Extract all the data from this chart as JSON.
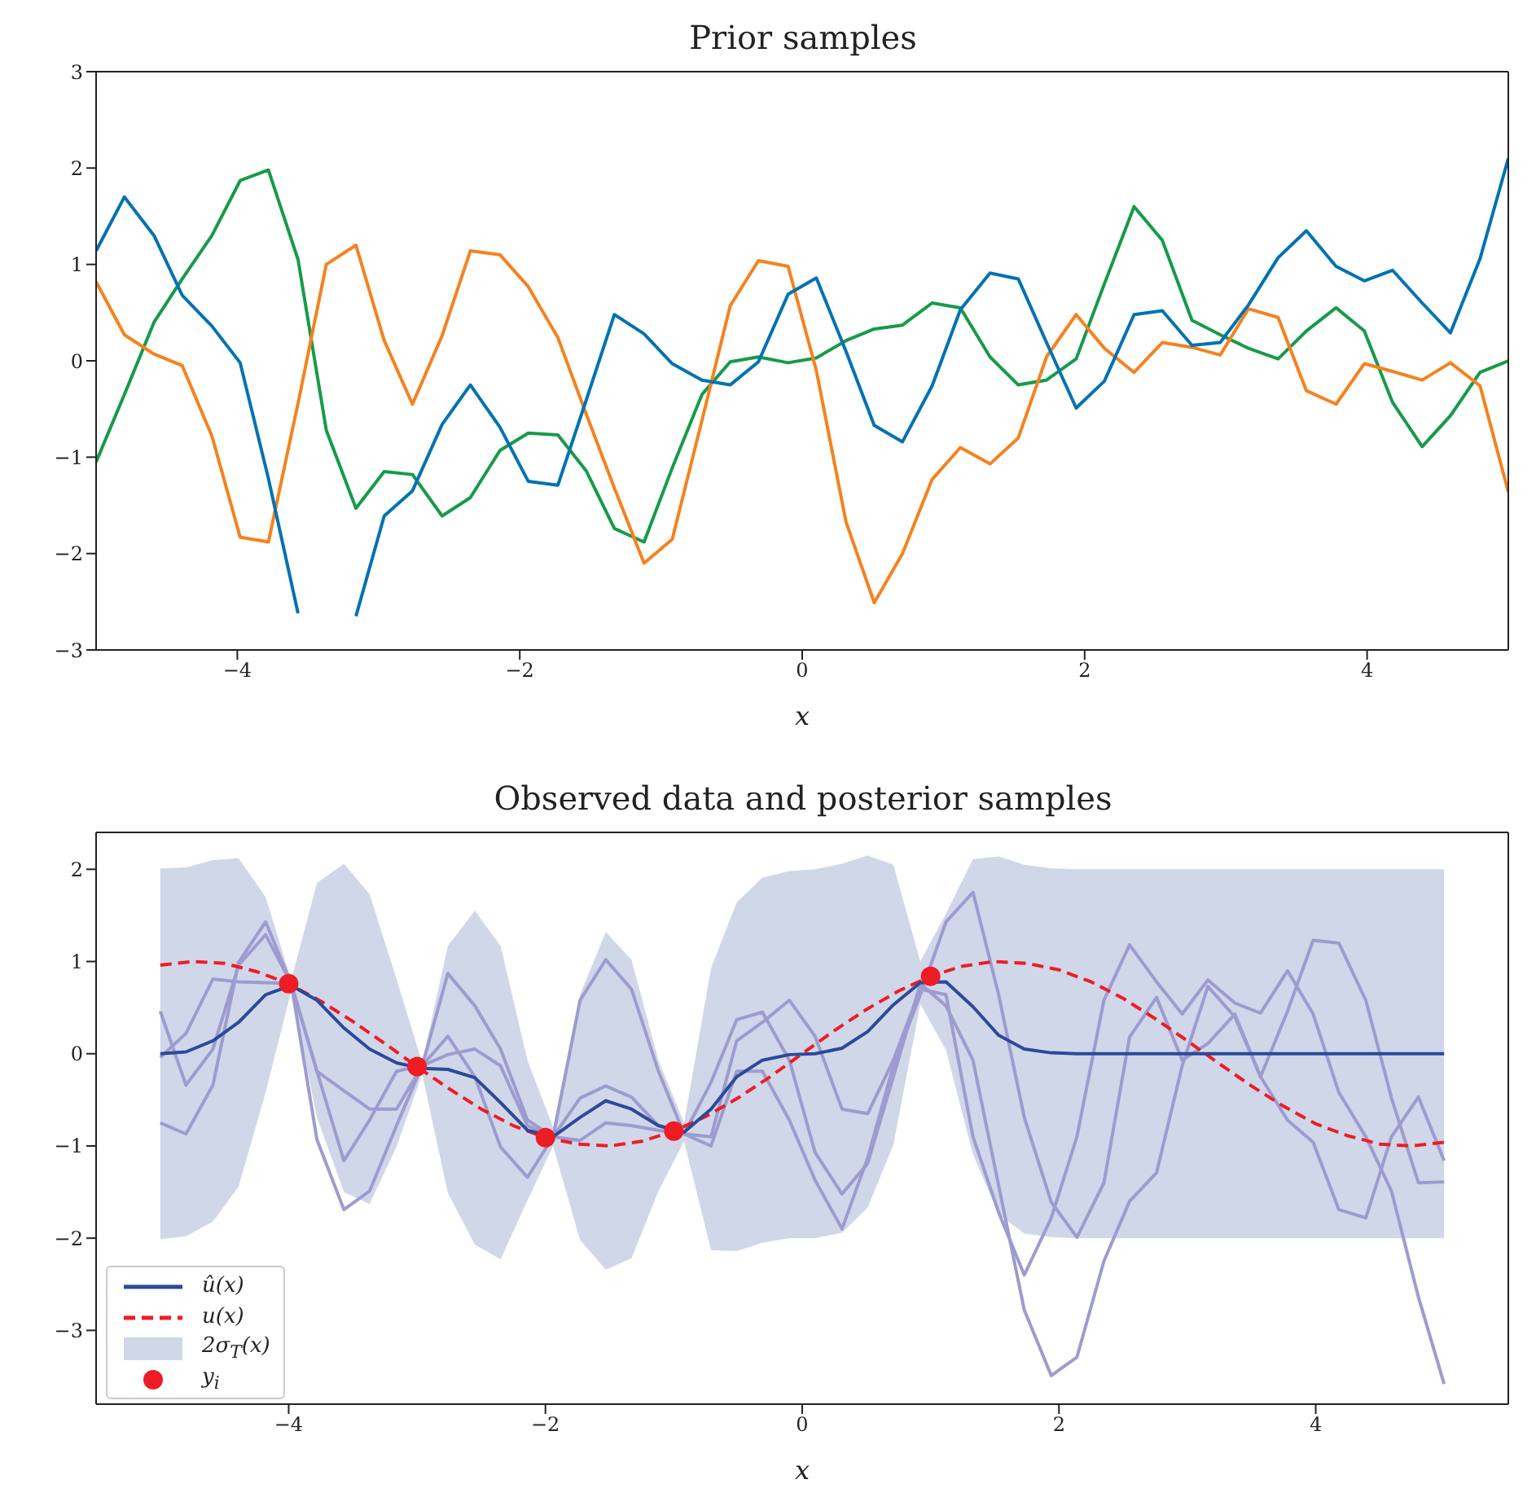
{
  "chart_data": [
    {
      "type": "line",
      "title": "Prior samples",
      "xlabel": "x",
      "xlim": [
        -5,
        5
      ],
      "ylim": [
        -3,
        3
      ],
      "xticks": [
        -4,
        -2,
        0,
        2,
        4
      ],
      "yticks": [
        -3,
        -2,
        -1,
        0,
        1,
        2,
        3
      ],
      "x": [
        -5,
        -4.8,
        -4.59,
        -4.39,
        -4.18,
        -3.98,
        -3.78,
        -3.57,
        -3.37,
        -3.16,
        -2.96,
        -2.76,
        -2.55,
        -2.35,
        -2.14,
        -1.94,
        -1.73,
        -1.53,
        -1.33,
        -1.12,
        -0.92,
        -0.71,
        -0.51,
        -0.31,
        -0.1,
        0.1,
        0.31,
        0.51,
        0.71,
        0.92,
        1.12,
        1.33,
        1.53,
        1.73,
        1.94,
        2.14,
        2.35,
        2.55,
        2.76,
        2.96,
        3.16,
        3.37,
        3.57,
        3.78,
        3.98,
        4.18,
        4.39,
        4.59,
        4.8,
        5
      ],
      "series": [
        {
          "color": "#0072b2",
          "values": [
            1.14,
            1.7,
            1.3,
            0.68,
            0.36,
            -0.02,
            -1.22,
            -2.62,
            null,
            -2.65,
            -1.61,
            -1.35,
            -0.66,
            -0.25,
            -0.69,
            -1.25,
            -1.29,
            -0.41,
            0.48,
            0.28,
            -0.03,
            -0.2,
            -0.25,
            -0.01,
            0.69,
            0.86,
            0.1,
            -0.67,
            -0.84,
            -0.26,
            0.53,
            0.91,
            0.85,
            0.19,
            -0.49,
            -0.21,
            0.48,
            0.52,
            0.16,
            0.19,
            0.58,
            1.07,
            1.35,
            0.98,
            0.83,
            0.94,
            0.6,
            0.29,
            1.06,
            2.1
          ]
        },
        {
          "color": "#f5821f",
          "values": [
            0.82,
            0.27,
            0.07,
            -0.05,
            -0.78,
            -1.83,
            -1.88,
            -0.44,
            1.0,
            1.2,
            0.21,
            -0.45,
            0.26,
            1.14,
            1.1,
            0.77,
            0.24,
            -0.55,
            -1.32,
            -2.1,
            -1.85,
            -0.62,
            0.57,
            1.04,
            0.98,
            -0.1,
            -1.67,
            -2.51,
            -2.0,
            -1.23,
            -0.9,
            -1.07,
            -0.8,
            0.04,
            0.48,
            0.13,
            -0.12,
            0.19,
            0.14,
            0.06,
            0.54,
            0.45,
            -0.31,
            -0.45,
            -0.03,
            -0.11,
            -0.2,
            -0.02,
            -0.26,
            -1.36
          ]
        },
        {
          "color": "#169b48",
          "values": [
            -1.05,
            -0.35,
            0.4,
            0.85,
            1.3,
            1.87,
            1.98,
            1.05,
            -0.72,
            -1.53,
            -1.15,
            -1.18,
            -1.61,
            -1.42,
            -0.93,
            -0.75,
            -0.77,
            -1.14,
            -1.74,
            -1.88,
            -1.11,
            -0.35,
            -0.01,
            0.04,
            -0.02,
            0.03,
            0.21,
            0.33,
            0.37,
            0.6,
            0.55,
            0.04,
            -0.25,
            -0.2,
            0.02,
            0.8,
            1.6,
            1.25,
            0.42,
            0.27,
            0.13,
            0.02,
            0.31,
            0.55,
            0.31,
            -0.43,
            -0.89,
            -0.57,
            -0.12,
            0
          ]
        }
      ]
    },
    {
      "type": "line",
      "title": "Observed data and posterior samples",
      "xlabel": "x",
      "xlim": [
        -5.5,
        5.5
      ],
      "ylim": [
        -3.8,
        2.4
      ],
      "xticks": [
        -4,
        -2,
        0,
        2,
        4
      ],
      "yticks": [
        -3,
        -2,
        -1,
        0,
        1,
        2
      ],
      "legend": "bottom left",
      "annotations": [
        "2σ$_{T}$(x)"
      ],
      "x": [
        -5,
        -4.8,
        -4.59,
        -4.39,
        -4.18,
        -3.98,
        -3.78,
        -3.57,
        -3.37,
        -3.16,
        -2.96,
        -2.76,
        -2.55,
        -2.35,
        -2.14,
        -1.94,
        -1.73,
        -1.53,
        -1.33,
        -1.12,
        -0.92,
        -0.71,
        -0.51,
        -0.31,
        -0.1,
        0.1,
        0.31,
        0.51,
        0.71,
        0.92,
        1.12,
        1.33,
        1.53,
        1.73,
        1.94,
        2.14,
        2.35,
        2.55,
        2.76,
        2.96,
        3.16,
        3.37,
        3.57,
        3.78,
        3.98,
        4.18,
        4.39,
        4.59,
        4.8,
        5
      ],
      "series": [
        {
          "name": "û(x)",
          "type": "line",
          "color": "#2b4a9a",
          "values": [
            0,
            0.02,
            0.14,
            0.34,
            0.64,
            0.74,
            0.58,
            0.28,
            0.05,
            -0.1,
            -0.16,
            -0.17,
            -0.26,
            -0.53,
            -0.83,
            -0.9,
            -0.69,
            -0.51,
            -0.6,
            -0.78,
            -0.85,
            -0.6,
            -0.25,
            -0.07,
            -0.01,
            0,
            0.06,
            0.24,
            0.53,
            0.77,
            0.78,
            0.51,
            0.2,
            0.05,
            0.01,
            0,
            0,
            0,
            0,
            0,
            0,
            0,
            0,
            0,
            0,
            0,
            0,
            0,
            0,
            0
          ],
          "lower": [
            -2.01,
            -1.98,
            -1.82,
            -1.44,
            -0.42,
            0.68,
            -0.69,
            -1.5,
            -1.63,
            -1.01,
            -0.22,
            -1.51,
            -2.07,
            -2.23,
            -1.59,
            -1.0,
            -2.02,
            -2.34,
            -2.22,
            -1.49,
            -0.95,
            -2.13,
            -2.14,
            -2.05,
            -2.0,
            -2.0,
            -1.94,
            -1.67,
            -0.99,
            0.54,
            0.04,
            -1.09,
            -1.74,
            -1.95,
            -1.99,
            -2,
            -2,
            -2,
            -2,
            -2,
            -2,
            -2,
            -2,
            -2,
            -2,
            -2,
            -2,
            -2,
            -2,
            -2
          ],
          "upper": [
            2.01,
            2.02,
            2.1,
            2.12,
            1.7,
            0.8,
            1.85,
            2.06,
            1.73,
            0.81,
            -0.1,
            1.17,
            1.55,
            1.17,
            -0.07,
            -0.8,
            0.64,
            1.32,
            1.02,
            -0.07,
            -0.75,
            0.93,
            1.64,
            1.91,
            1.98,
            2.0,
            2.06,
            2.15,
            2.05,
            1.0,
            1.52,
            2.11,
            2.14,
            2.05,
            2.01,
            2,
            2,
            2,
            2,
            2,
            2,
            2,
            2,
            2,
            2,
            2,
            2,
            2,
            2,
            2
          ]
        },
        {
          "name": "u(x)",
          "type": "line",
          "line_style": "dashed",
          "color": "#ee1c25",
          "x": [
            -5,
            -4.75,
            -4.5,
            -4.25,
            -4,
            -3.75,
            -3.5,
            -3.25,
            -3,
            -2.75,
            -2.5,
            -2.25,
            -2,
            -1.75,
            -1.5,
            -1.25,
            -1,
            -0.75,
            -0.5,
            -0.25,
            0,
            0.25,
            0.5,
            0.75,
            1,
            1.25,
            1.5,
            1.75,
            2,
            2.25,
            2.5,
            2.75,
            3,
            3.25,
            3.5,
            3.75,
            4,
            4.25,
            4.5,
            4.75,
            5
          ],
          "values": [
            0.96,
            1.0,
            0.98,
            0.89,
            0.76,
            0.57,
            0.35,
            0.11,
            -0.14,
            -0.38,
            -0.6,
            -0.78,
            -0.91,
            -0.98,
            -1.0,
            -0.95,
            -0.84,
            -0.68,
            -0.48,
            -0.25,
            0,
            0.25,
            0.48,
            0.68,
            0.84,
            0.95,
            1.0,
            0.98,
            0.91,
            0.78,
            0.6,
            0.38,
            0.14,
            -0.11,
            -0.35,
            -0.57,
            -0.76,
            -0.89,
            -0.98,
            -1.0,
            -0.96
          ]
        },
        {
          "name": "y$_{i}$",
          "type": "scatter",
          "marker": "circle",
          "color": "#ee1c25",
          "x": [
            -4,
            -3,
            -2,
            -1,
            1
          ],
          "values": [
            0.76,
            -0.14,
            -0.91,
            -0.84,
            0.84
          ]
        },
        {
          "color": "#9d9bcf",
          "values": [
            0.46,
            -0.34,
            0.05,
            0.96,
            1.29,
            0.76,
            -0.19,
            -1.16,
            -0.72,
            -0.19,
            -0.13,
            0.87,
            0.52,
            0.05,
            -0.72,
            -0.9,
            0.58,
            1.02,
            0.7,
            -0.19,
            -0.87,
            -1.0,
            -0.19,
            -0.19,
            -0.72,
            -1.37,
            -1.9,
            -1.13,
            -0.13,
            0.64,
            1.43,
            1.75,
            0.64,
            -0.69,
            -1.61,
            -1.99,
            -1.4,
            0.18,
            0.61,
            -0.07,
            0.11,
            0.43,
            -0.25,
            0.46,
            1.23,
            1.2,
            0.58,
            -0.48,
            -1.4,
            -1.39
          ]
        },
        {
          "color": "#9d9bcf",
          "values": [
            -0.04,
            0.22,
            0.81,
            0.78,
            0.77,
            0.76,
            -0.19,
            -0.4,
            -0.6,
            -0.6,
            -0.13,
            0.19,
            -0.25,
            -1.01,
            -1.34,
            -0.9,
            -0.48,
            -0.35,
            -0.47,
            -0.78,
            -0.87,
            -0.31,
            0.37,
            0.45,
            -0.07,
            -1.07,
            -1.52,
            -1.19,
            -0.25,
            0.76,
            0.52,
            -0.07,
            -1.43,
            -2.78,
            -3.49,
            -3.29,
            -2.25,
            -1.6,
            -1.29,
            -0.13,
            0.73,
            0.4,
            -0.25,
            -0.72,
            -0.96,
            -1.69,
            -1.78,
            -0.9,
            -0.47,
            -1.16
          ]
        },
        {
          "color": "#9d9bcf",
          "values": [
            -0.75,
            -0.87,
            -0.34,
            0.99,
            1.43,
            0.76,
            -0.93,
            -1.69,
            -1.49,
            -0.78,
            -0.13,
            -0.01,
            0.05,
            -0.13,
            -0.78,
            -0.9,
            -0.94,
            -0.75,
            -0.78,
            -0.83,
            -0.87,
            -0.9,
            0.14,
            0.34,
            0.58,
            0.19,
            -0.6,
            -0.65,
            -0.07,
            0.7,
            0.64,
            -0.9,
            -1.72,
            -2.4,
            -1.78,
            -0.9,
            0.58,
            1.18,
            0.78,
            0.43,
            0.8,
            0.55,
            0.44,
            0.9,
            0.43,
            -0.42,
            -0.9,
            -1.49,
            -2.64,
            -3.58
          ]
        }
      ]
    }
  ]
}
